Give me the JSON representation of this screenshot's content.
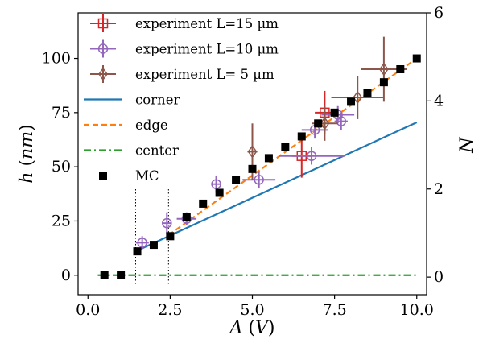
{
  "chart_data": {
    "type": "line",
    "xlabel": "A (V)",
    "ylabel": "h (nm)",
    "y2label": "N",
    "xlim": [
      -0.3,
      10.3
    ],
    "ylim": [
      -9,
      121
    ],
    "y2lim": [
      -0.4,
      6
    ],
    "xticks": [
      "0.0",
      "2.5",
      "5.0",
      "7.5",
      "10.0"
    ],
    "xtick_values": [
      0,
      2.5,
      5,
      7.5,
      10
    ],
    "yticks": [
      "0",
      "25",
      "50",
      "75",
      "100"
    ],
    "ytick_values": [
      0,
      25,
      50,
      75,
      100
    ],
    "y2ticks": [
      "0",
      "2",
      "4",
      "6"
    ],
    "y2tick_values": [
      0,
      2,
      4,
      6
    ],
    "grid": false,
    "legend_position": "top-left",
    "vlines": [
      1.45,
      2.45
    ],
    "legend": [
      {
        "label": "experiment L=15 µm",
        "kind": "errorbar",
        "marker": "square",
        "color": "#d62728"
      },
      {
        "label": "experiment L=10 µm",
        "kind": "errorbar",
        "marker": "circle",
        "color": "#9467bd"
      },
      {
        "label": "experiment L= 5 µm",
        "kind": "errorbar",
        "marker": "diamond",
        "color": "#8c564b"
      },
      {
        "label": "corner",
        "kind": "line",
        "style": "solid",
        "color": "#1f77b4"
      },
      {
        "label": "edge",
        "kind": "line",
        "style": "dashed",
        "color": "#ff7f0e"
      },
      {
        "label": "center",
        "kind": "line",
        "style": "dashdot",
        "color": "#2ca02c"
      },
      {
        "label": "MC",
        "kind": "scatter",
        "marker": "square",
        "color": "#000000"
      }
    ],
    "series": [
      {
        "name": "corner",
        "type": "line",
        "style": "solid",
        "color": "#1f77b4",
        "x": [
          1.45,
          10.0
        ],
        "y": [
          11,
          70.5
        ]
      },
      {
        "name": "edge",
        "type": "line",
        "style": "dashed",
        "color": "#ff7f0e",
        "x": [
          2.45,
          10.0
        ],
        "y": [
          18.5,
          100
        ]
      },
      {
        "name": "center",
        "type": "line",
        "style": "dashdot",
        "color": "#2ca02c",
        "x": [
          0.3,
          10.0
        ],
        "y": [
          0,
          0
        ]
      },
      {
        "name": "MC",
        "type": "scatter",
        "marker": "square",
        "color": "#000000",
        "x": [
          0.5,
          1.0,
          1.5,
          2.0,
          2.5,
          3.0,
          3.5,
          4.0,
          4.5,
          5.0,
          5.5,
          6.0,
          6.5,
          7.0,
          7.5,
          8.0,
          8.5,
          9.0,
          9.5,
          10.0
        ],
        "y": [
          0,
          0,
          11,
          14,
          18,
          27,
          33,
          38,
          44,
          49,
          54,
          59,
          64,
          70,
          75,
          80,
          84,
          89,
          95,
          100
        ]
      },
      {
        "name": "experiment L=15 µm",
        "type": "errorbar",
        "marker": "square",
        "color": "#d62728",
        "points": [
          {
            "x": 6.5,
            "y": 55,
            "xerr": 0.3,
            "yerr": 10
          },
          {
            "x": 7.2,
            "y": 75,
            "xerr": 0.3,
            "yerr": 10
          }
        ]
      },
      {
        "name": "experiment L=10 µm",
        "type": "errorbar",
        "marker": "circle",
        "color": "#9467bd",
        "points": [
          {
            "x": 1.65,
            "y": 15,
            "xerr": 0.2,
            "yerr": 3
          },
          {
            "x": 2.4,
            "y": 24,
            "xerr": 0.15,
            "yerr": 5
          },
          {
            "x": 3.0,
            "y": 26,
            "xerr": 0.3,
            "yerr": 3
          },
          {
            "x": 3.9,
            "y": 42,
            "xerr": 0.15,
            "yerr": 4
          },
          {
            "x": 5.2,
            "y": 44,
            "xerr": 0.5,
            "yerr": 4
          },
          {
            "x": 6.8,
            "y": 55,
            "xerr": 1.0,
            "yerr": 4
          },
          {
            "x": 6.9,
            "y": 67,
            "xerr": 0.4,
            "yerr": 4
          },
          {
            "x": 7.7,
            "y": 71,
            "xerr": 0.2,
            "yerr": 4
          },
          {
            "x": 7.6,
            "y": 74,
            "xerr": 0.5,
            "yerr": 4
          }
        ]
      },
      {
        "name": "experiment L= 5 µm",
        "type": "errorbar",
        "marker": "diamond",
        "color": "#8c564b",
        "points": [
          {
            "x": 5.0,
            "y": 57,
            "xerr": 0.15,
            "yerr": 13
          },
          {
            "x": 7.2,
            "y": 70,
            "xerr": 0.4,
            "yerr": 8
          },
          {
            "x": 8.2,
            "y": 82,
            "xerr": 0.8,
            "yerr": 10
          },
          {
            "x": 9.0,
            "y": 95,
            "xerr": 0.7,
            "yerr": 15
          }
        ]
      }
    ]
  }
}
